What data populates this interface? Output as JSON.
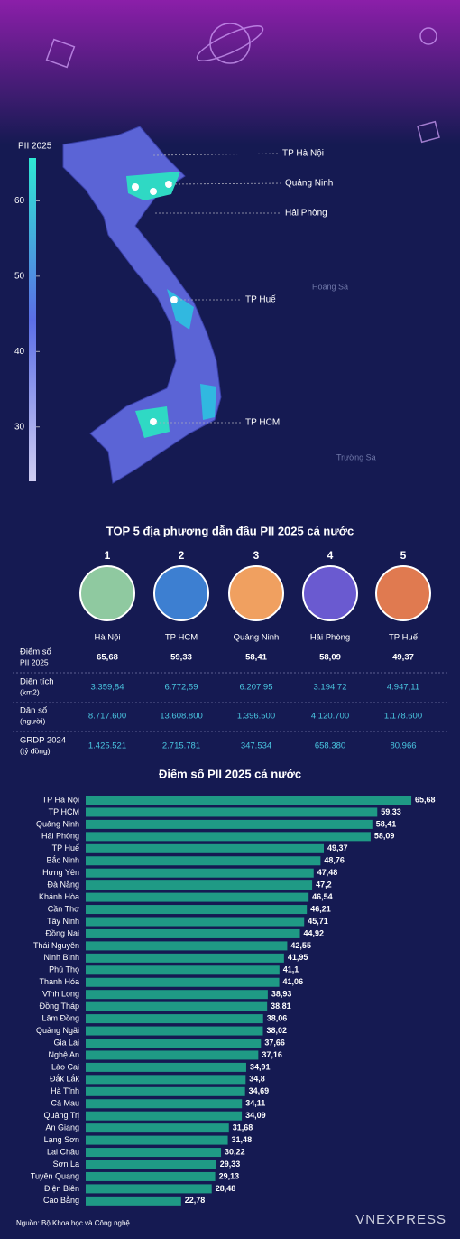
{
  "map": {
    "legend": {
      "title": "PII 2025",
      "lim": [
        22.78,
        65.68
      ],
      "ticks": [
        30,
        40,
        50,
        60
      ]
    },
    "labels": [
      "TP Hà Nội",
      "Quảng Ninh",
      "Hải Phòng",
      "TP Huế",
      "TP HCM",
      "Hoàng Sa",
      "Trường Sa"
    ]
  },
  "top5": {
    "title": "TOP 5 địa phương dẫn đầu PII 2025 cả nước",
    "ranks": [
      "1",
      "2",
      "3",
      "4",
      "5"
    ],
    "names": [
      "Hà Nội",
      "TP HCM",
      "Quảng Ninh",
      "Hải Phòng",
      "TP Huế"
    ],
    "rows": [
      {
        "label": [
          "Điểm số",
          "PII 2025"
        ],
        "values": [
          "65,68",
          "59,33",
          "58,41",
          "58,09",
          "49,37"
        ]
      },
      {
        "label": [
          "Diện tích",
          "(km2)"
        ],
        "values": [
          "3.359,84",
          "6.772,59",
          "6.207,95",
          "3.194,72",
          "4.947,11"
        ]
      },
      {
        "label": [
          "Dân số",
          "(người)"
        ],
        "values": [
          "8.717.600",
          "13.608.800",
          "1.396.500",
          "4.120.700",
          "1.178.600"
        ]
      },
      {
        "label": [
          "GRDP 2024",
          "(tỷ đồng)"
        ],
        "values": [
          "1.425.521",
          "2.715.781",
          "347.534",
          "658.380",
          "80.966"
        ]
      }
    ]
  },
  "chart_data": {
    "type": "bar",
    "orientation": "horizontal",
    "title": "Điểm số PII 2025 cả nước",
    "color": "#1f9a85",
    "xlim": [
      5,
      66
    ],
    "categories": [
      "TP Hà Nội",
      "TP HCM",
      "Quảng Ninh",
      "Hải Phòng",
      "TP Huế",
      "Bắc Ninh",
      "Hưng Yên",
      "Đà Nẵng",
      "Khánh Hòa",
      "Cần Thơ",
      "Tây Ninh",
      "Đồng Nai",
      "Thái Nguyên",
      "Ninh Bình",
      "Phú Thọ",
      "Thanh Hóa",
      "Vĩnh Long",
      "Đồng Tháp",
      "Lâm Đồng",
      "Quảng Ngãi",
      "Gia Lai",
      "Nghệ An",
      "Lào Cai",
      "Đắk Lắk",
      "Hà Tĩnh",
      "Cà Mau",
      "Quảng Trị",
      "An Giang",
      "Lạng Sơn",
      "Lai Châu",
      "Sơn La",
      "Tuyên Quang",
      "Điện Biên",
      "Cao Bằng"
    ],
    "values": [
      65.68,
      59.33,
      58.41,
      58.09,
      49.37,
      48.76,
      47.48,
      47.2,
      46.54,
      46.21,
      45.71,
      44.92,
      42.55,
      41.95,
      41.1,
      41.06,
      38.93,
      38.81,
      38.06,
      38.02,
      37.66,
      37.16,
      34.91,
      34.8,
      34.69,
      34.11,
      34.09,
      31.68,
      31.48,
      30.22,
      29.33,
      29.13,
      28.48,
      22.78
    ],
    "value_labels": [
      "65,68",
      "59,33",
      "58,41",
      "58,09",
      "49,37",
      "48,76",
      "47,48",
      "47,2",
      "46,54",
      "46,21",
      "45,71",
      "44,92",
      "42,55",
      "41,95",
      "41,1",
      "41,06",
      "38,93",
      "38,81",
      "38,06",
      "38,02",
      "37,66",
      "37,16",
      "34,91",
      "34,8",
      "34,69",
      "34,11",
      "34,09",
      "31,68",
      "31,48",
      "30,22",
      "29,33",
      "29,13",
      "28,48",
      "22,78"
    ]
  },
  "footer": {
    "source": "Nguồn: Bộ Khoa học và Công nghệ",
    "logo": "VNEXPRESS"
  }
}
